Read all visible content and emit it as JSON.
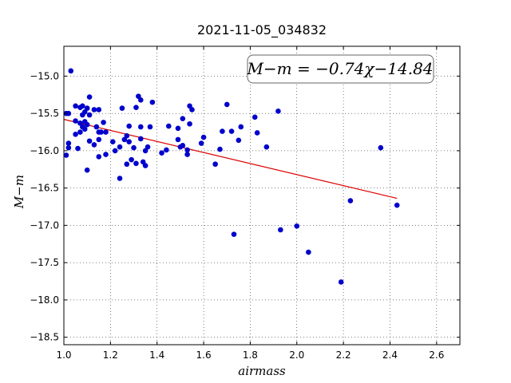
{
  "chart_data": {
    "type": "scatter",
    "title": "2021-11-05_034832",
    "xlabel": "airmass",
    "ylabel": "M−m",
    "xlim": [
      1.0,
      2.7
    ],
    "ylim": [
      -18.6,
      -14.6
    ],
    "x_ticks": [
      1.0,
      1.2,
      1.4,
      1.6,
      1.8,
      2.0,
      2.2,
      2.4,
      2.6
    ],
    "x_tick_labels": [
      "1.0",
      "1.2",
      "1.4",
      "1.6",
      "1.8",
      "2.0",
      "2.2",
      "2.4",
      "2.6"
    ],
    "y_ticks": [
      -15.0,
      -15.5,
      -16.0,
      -16.5,
      -17.0,
      -17.5,
      -18.0,
      -18.5
    ],
    "y_tick_labels": [
      "−15.0",
      "−15.5",
      "−16.0",
      "−16.5",
      "−17.0",
      "−17.5",
      "−18.0",
      "−18.5"
    ],
    "grid": true,
    "annotation": "M−m = −0.74χ−14.84",
    "fit": {
      "slope": -0.74,
      "intercept": -14.84,
      "x_range": [
        1.0,
        2.43
      ],
      "color": "#dd0000"
    },
    "point_color": "#0000cc",
    "points": [
      [
        1.01,
        -16.06
      ],
      [
        1.01,
        -15.5
      ],
      [
        1.02,
        -15.5
      ],
      [
        1.02,
        -15.9
      ],
      [
        1.02,
        -15.96
      ],
      [
        1.03,
        -14.93
      ],
      [
        1.05,
        -15.4
      ],
      [
        1.05,
        -15.6
      ],
      [
        1.05,
        -15.78
      ],
      [
        1.06,
        -15.97
      ],
      [
        1.07,
        -15.42
      ],
      [
        1.07,
        -15.63
      ],
      [
        1.07,
        -15.75
      ],
      [
        1.08,
        -15.4
      ],
      [
        1.08,
        -15.52
      ],
      [
        1.08,
        -15.68
      ],
      [
        1.09,
        -15.48
      ],
      [
        1.09,
        -15.61
      ],
      [
        1.09,
        -15.71
      ],
      [
        1.1,
        -15.43
      ],
      [
        1.1,
        -15.65
      ],
      [
        1.1,
        -16.26
      ],
      [
        1.11,
        -15.28
      ],
      [
        1.11,
        -15.52
      ],
      [
        1.11,
        -15.87
      ],
      [
        1.13,
        -15.45
      ],
      [
        1.13,
        -15.92
      ],
      [
        1.14,
        -15.68
      ],
      [
        1.15,
        -15.45
      ],
      [
        1.15,
        -15.75
      ],
      [
        1.15,
        -15.85
      ],
      [
        1.15,
        -16.08
      ],
      [
        1.16,
        -15.75
      ],
      [
        1.17,
        -15.62
      ],
      [
        1.18,
        -15.75
      ],
      [
        1.18,
        -16.05
      ],
      [
        1.21,
        -15.88
      ],
      [
        1.22,
        -16.0
      ],
      [
        1.24,
        -15.95
      ],
      [
        1.24,
        -16.37
      ],
      [
        1.25,
        -15.43
      ],
      [
        1.26,
        -15.85
      ],
      [
        1.27,
        -15.8
      ],
      [
        1.27,
        -16.18
      ],
      [
        1.28,
        -15.67
      ],
      [
        1.28,
        -15.88
      ],
      [
        1.29,
        -16.12
      ],
      [
        1.3,
        -15.96
      ],
      [
        1.31,
        -15.42
      ],
      [
        1.31,
        -16.17
      ],
      [
        1.32,
        -15.27
      ],
      [
        1.33,
        -15.32
      ],
      [
        1.33,
        -15.68
      ],
      [
        1.33,
        -15.84
      ],
      [
        1.34,
        -16.15
      ],
      [
        1.35,
        -16.0
      ],
      [
        1.35,
        -16.2
      ],
      [
        1.36,
        -15.95
      ],
      [
        1.37,
        -15.68
      ],
      [
        1.38,
        -15.35
      ],
      [
        1.42,
        -16.03
      ],
      [
        1.44,
        -15.99
      ],
      [
        1.45,
        -15.67
      ],
      [
        1.49,
        -15.7
      ],
      [
        1.49,
        -15.85
      ],
      [
        1.5,
        -15.95
      ],
      [
        1.51,
        -15.57
      ],
      [
        1.51,
        -15.93
      ],
      [
        1.53,
        -15.99
      ],
      [
        1.53,
        -16.05
      ],
      [
        1.54,
        -15.4
      ],
      [
        1.54,
        -15.64
      ],
      [
        1.55,
        -15.45
      ],
      [
        1.59,
        -15.9
      ],
      [
        1.6,
        -15.82
      ],
      [
        1.65,
        -16.18
      ],
      [
        1.67,
        -15.98
      ],
      [
        1.68,
        -15.74
      ],
      [
        1.7,
        -15.38
      ],
      [
        1.72,
        -15.74
      ],
      [
        1.73,
        -17.12
      ],
      [
        1.75,
        -15.86
      ],
      [
        1.76,
        -15.68
      ],
      [
        1.82,
        -15.55
      ],
      [
        1.83,
        -15.76
      ],
      [
        1.87,
        -15.95
      ],
      [
        1.92,
        -15.47
      ],
      [
        1.93,
        -17.06
      ],
      [
        2.0,
        -17.01
      ],
      [
        2.05,
        -17.36
      ],
      [
        2.19,
        -17.76
      ],
      [
        2.23,
        -16.67
      ],
      [
        2.36,
        -15.96
      ],
      [
        2.43,
        -16.73
      ]
    ]
  }
}
